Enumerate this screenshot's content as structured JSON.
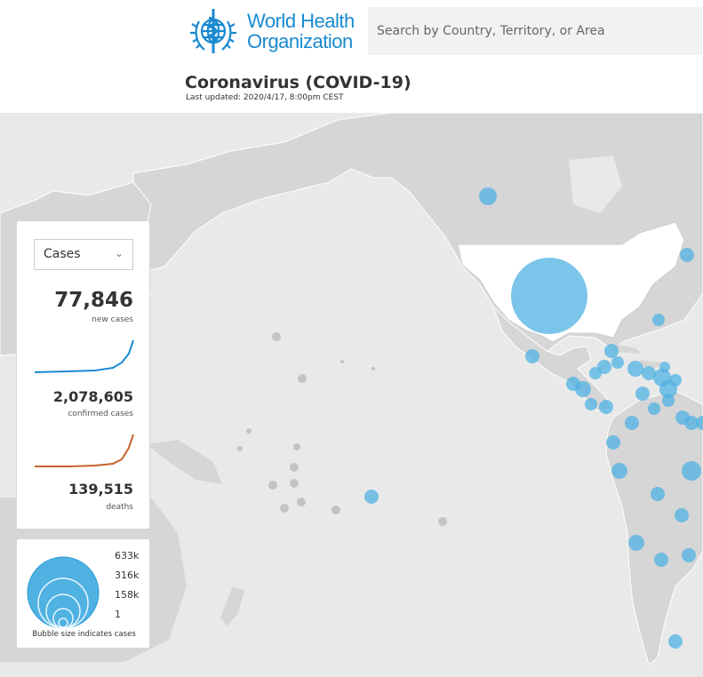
{
  "header": {
    "org_name_line1": "World Health",
    "org_name_line2": "Organization",
    "search_placeholder": "Search by Country, Territory, or Area",
    "title": "Coronavirus (COVID-19)",
    "last_updated": "Last updated: 2020/4/17, 8:00pm CEST"
  },
  "stats": {
    "metric_selected": "Cases",
    "new_cases_value": "77,846",
    "new_cases_label": "new cases",
    "confirmed_value": "2,078,605",
    "confirmed_label": "confirmed cases",
    "deaths_value": "139,515",
    "deaths_label": "deaths"
  },
  "legend": {
    "values": [
      "633k",
      "316k",
      "158k",
      "1"
    ],
    "caption": "Bubble size indicates cases"
  },
  "colors": {
    "brand": "#1a8ad1",
    "bubble": "#4fb2e3",
    "cases_line": "#1a8ad1",
    "deaths_line": "#c5622b",
    "land": "#d6d6d6",
    "ocean": "#e9e9e9"
  },
  "icons": {
    "logo": "who-emblem-icon",
    "dropdown": "chevron-down-icon"
  }
}
